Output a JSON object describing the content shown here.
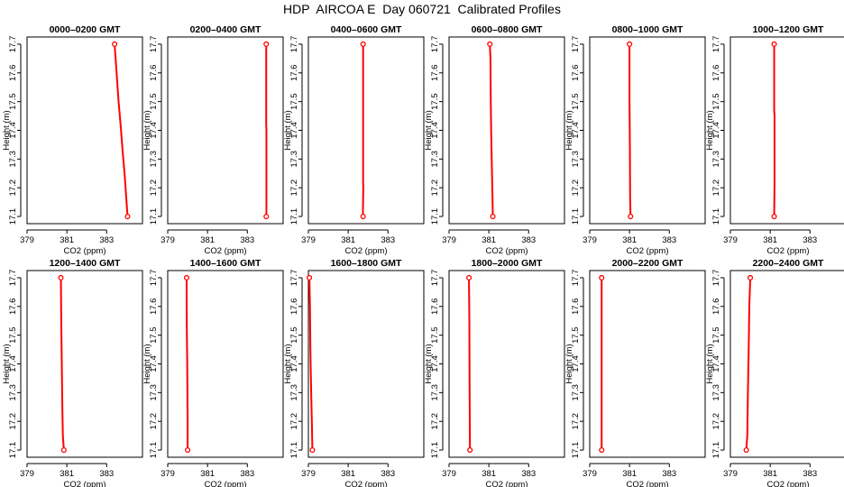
{
  "title": "HDP  AIRCOA E  Day 060721  Calibrated Profiles",
  "colors": {
    "series": "#ff0000",
    "axis": "#000000"
  },
  "chart_data": [
    {
      "type": "line",
      "title": "0000–0200 GMT",
      "xlabel": "CO2 (ppm)",
      "ylabel": "Height (m)",
      "xlim": [
        379,
        384.8
      ],
      "ylim": [
        17.075,
        17.725
      ],
      "xticks": [
        379,
        381,
        383
      ],
      "xtick_labels": [
        "379",
        "381",
        "383"
      ],
      "yticks": [
        17.1,
        17.2,
        17.3,
        17.4,
        17.5,
        17.6,
        17.7
      ],
      "ytick_labels": [
        "17.1",
        "17.2",
        "17.3",
        "17.4",
        "17.5",
        "17.6",
        "17.7"
      ],
      "x": [
        383.4,
        384.05
      ],
      "y": [
        17.7,
        17.1
      ],
      "line_x": [
        383.4,
        383.5,
        383.6,
        383.7,
        383.8,
        383.9,
        384.0,
        384.05
      ],
      "line_y": [
        17.7,
        17.6,
        17.5,
        17.42,
        17.33,
        17.25,
        17.15,
        17.1
      ]
    },
    {
      "type": "line",
      "title": "0200–0400 GMT",
      "xlabel": "CO2 (ppm)",
      "ylabel": "Height (m)",
      "xlim": [
        379,
        384.8
      ],
      "ylim": [
        17.075,
        17.725
      ],
      "xticks": [
        379,
        381,
        383
      ],
      "xtick_labels": [
        "379",
        "381",
        "383"
      ],
      "yticks": [
        17.1,
        17.2,
        17.3,
        17.4,
        17.5,
        17.6,
        17.7
      ],
      "ytick_labels": [
        "17.1",
        "17.2",
        "17.3",
        "17.4",
        "17.5",
        "17.6",
        "17.7"
      ],
      "x": [
        383.95,
        383.95
      ],
      "y": [
        17.7,
        17.1
      ],
      "line_x": [
        383.95,
        383.95,
        383.96,
        383.96,
        383.95
      ],
      "line_y": [
        17.7,
        17.42,
        17.4,
        17.12,
        17.1
      ]
    },
    {
      "type": "line",
      "title": "0400–0600 GMT",
      "xlabel": "CO2 (ppm)",
      "ylabel": "Height (m)",
      "xlim": [
        379,
        384.8
      ],
      "ylim": [
        17.075,
        17.725
      ],
      "xticks": [
        379,
        381,
        383
      ],
      "xtick_labels": [
        "379",
        "381",
        "383"
      ],
      "yticks": [
        17.1,
        17.2,
        17.3,
        17.4,
        17.5,
        17.6,
        17.7
      ],
      "ytick_labels": [
        "17.1",
        "17.2",
        "17.3",
        "17.4",
        "17.5",
        "17.6",
        "17.7"
      ],
      "x": [
        381.75,
        381.75
      ],
      "y": [
        17.7,
        17.1
      ],
      "line_x": [
        381.75,
        381.75,
        381.76,
        381.74,
        381.75
      ],
      "line_y": [
        17.7,
        17.22,
        17.2,
        17.12,
        17.1
      ]
    },
    {
      "type": "line",
      "title": "0600–0800 GMT",
      "xlabel": "CO2 (ppm)",
      "ylabel": "Height (m)",
      "xlim": [
        379,
        384.8
      ],
      "ylim": [
        17.075,
        17.725
      ],
      "xticks": [
        379,
        381,
        383
      ],
      "xtick_labels": [
        "379",
        "381",
        "383"
      ],
      "yticks": [
        17.1,
        17.2,
        17.3,
        17.4,
        17.5,
        17.6,
        17.7
      ],
      "ytick_labels": [
        "17.1",
        "17.2",
        "17.3",
        "17.4",
        "17.5",
        "17.6",
        "17.7"
      ],
      "x": [
        381.05,
        381.2
      ],
      "y": [
        17.7,
        17.1
      ],
      "line_x": [
        381.05,
        381.08,
        381.1,
        381.12,
        381.15,
        381.18,
        381.2
      ],
      "line_y": [
        17.7,
        17.65,
        17.48,
        17.38,
        17.28,
        17.18,
        17.1
      ]
    },
    {
      "type": "line",
      "title": "0800–1000 GMT",
      "xlabel": "CO2 (ppm)",
      "ylabel": "Height (m)",
      "xlim": [
        379,
        384.8
      ],
      "ylim": [
        17.075,
        17.725
      ],
      "xticks": [
        379,
        381,
        383
      ],
      "xtick_labels": [
        "379",
        "381",
        "383"
      ],
      "yticks": [
        17.1,
        17.2,
        17.3,
        17.4,
        17.5,
        17.6,
        17.7
      ],
      "ytick_labels": [
        "17.1",
        "17.2",
        "17.3",
        "17.4",
        "17.5",
        "17.6",
        "17.7"
      ],
      "x": [
        381.0,
        381.05
      ],
      "y": [
        17.7,
        17.1
      ],
      "line_x": [
        381.0,
        381.0,
        381.02,
        381.03,
        381.05
      ],
      "line_y": [
        17.7,
        17.5,
        17.33,
        17.17,
        17.1
      ]
    },
    {
      "type": "line",
      "title": "1000–1200 GMT",
      "xlabel": "CO2 (ppm)",
      "ylabel": "Height (m)",
      "xlim": [
        379,
        384.8
      ],
      "ylim": [
        17.075,
        17.725
      ],
      "xticks": [
        379,
        381,
        383
      ],
      "xtick_labels": [
        "379",
        "381",
        "383"
      ],
      "yticks": [
        17.1,
        17.2,
        17.3,
        17.4,
        17.5,
        17.6,
        17.7
      ],
      "ytick_labels": [
        "17.1",
        "17.2",
        "17.3",
        "17.4",
        "17.5",
        "17.6",
        "17.7"
      ],
      "x": [
        381.2,
        381.2
      ],
      "y": [
        17.7,
        17.1
      ],
      "line_x": [
        381.2,
        381.2,
        381.22,
        381.22,
        381.2
      ],
      "line_y": [
        17.7,
        17.47,
        17.45,
        17.22,
        17.1
      ]
    },
    {
      "type": "line",
      "title": "1200–1400 GMT",
      "xlabel": "CO2 (ppm)",
      "ylabel": "Height (m)",
      "xlim": [
        379,
        384.8
      ],
      "ylim": [
        17.075,
        17.725
      ],
      "xticks": [
        379,
        381,
        383
      ],
      "xtick_labels": [
        "379",
        "381",
        "383"
      ],
      "yticks": [
        17.1,
        17.2,
        17.3,
        17.4,
        17.5,
        17.6,
        17.7
      ],
      "ytick_labels": [
        "17.1",
        "17.2",
        "17.3",
        "17.4",
        "17.5",
        "17.6",
        "17.7"
      ],
      "x": [
        380.7,
        380.85
      ],
      "y": [
        17.7,
        17.1
      ],
      "line_x": [
        380.7,
        380.72,
        380.75,
        380.78,
        380.8,
        380.85
      ],
      "line_y": [
        17.7,
        17.54,
        17.38,
        17.22,
        17.15,
        17.1
      ]
    },
    {
      "type": "line",
      "title": "1400–1600 GMT",
      "xlabel": "CO2 (ppm)",
      "ylabel": "Height (m)",
      "xlim": [
        379,
        384.8
      ],
      "ylim": [
        17.075,
        17.725
      ],
      "xticks": [
        379,
        381,
        383
      ],
      "xtick_labels": [
        "379",
        "381",
        "383"
      ],
      "yticks": [
        17.1,
        17.2,
        17.3,
        17.4,
        17.5,
        17.6,
        17.7
      ],
      "ytick_labels": [
        "17.1",
        "17.2",
        "17.3",
        "17.4",
        "17.5",
        "17.6",
        "17.7"
      ],
      "x": [
        379.95,
        380.0
      ],
      "y": [
        17.7,
        17.1
      ],
      "line_x": [
        379.95,
        379.96,
        379.98,
        380.0,
        380.0
      ],
      "line_y": [
        17.7,
        17.52,
        17.4,
        17.2,
        17.1
      ]
    },
    {
      "type": "line",
      "title": "1600–1800 GMT",
      "xlabel": "CO2 (ppm)",
      "ylabel": "Height (m)",
      "xlim": [
        379,
        384.8
      ],
      "ylim": [
        17.075,
        17.725
      ],
      "xticks": [
        379,
        381,
        383
      ],
      "xtick_labels": [
        "379",
        "381",
        "383"
      ],
      "yticks": [
        17.1,
        17.2,
        17.3,
        17.4,
        17.5,
        17.6,
        17.7
      ],
      "ytick_labels": [
        "17.1",
        "17.2",
        "17.3",
        "17.4",
        "17.5",
        "17.6",
        "17.7"
      ],
      "x": [
        379.05,
        379.2
      ],
      "y": [
        17.7,
        17.1
      ],
      "line_x": [
        379.05,
        379.08,
        379.1,
        379.14,
        379.18,
        379.2
      ],
      "line_y": [
        17.7,
        17.6,
        17.45,
        17.3,
        17.18,
        17.1
      ]
    },
    {
      "type": "line",
      "title": "1800–2000 GMT",
      "xlabel": "CO2 (ppm)",
      "ylabel": "Height (m)",
      "xlim": [
        379,
        384.8
      ],
      "ylim": [
        17.075,
        17.725
      ],
      "xticks": [
        379,
        381,
        383
      ],
      "xtick_labels": [
        "379",
        "381",
        "383"
      ],
      "yticks": [
        17.1,
        17.2,
        17.3,
        17.4,
        17.5,
        17.6,
        17.7
      ],
      "ytick_labels": [
        "17.1",
        "17.2",
        "17.3",
        "17.4",
        "17.5",
        "17.6",
        "17.7"
      ],
      "x": [
        380.0,
        380.05
      ],
      "y": [
        17.7,
        17.1
      ],
      "line_x": [
        380.0,
        380.02,
        380.03,
        380.05
      ],
      "line_y": [
        17.7,
        17.55,
        17.35,
        17.1
      ]
    },
    {
      "type": "line",
      "title": "2000–2200 GMT",
      "xlabel": "CO2 (ppm)",
      "ylabel": "Height (m)",
      "xlim": [
        379,
        384.8
      ],
      "ylim": [
        17.075,
        17.725
      ],
      "xticks": [
        379,
        381,
        383
      ],
      "xtick_labels": [
        "379",
        "381",
        "383"
      ],
      "yticks": [
        17.1,
        17.2,
        17.3,
        17.4,
        17.5,
        17.6,
        17.7
      ],
      "ytick_labels": [
        "17.1",
        "17.2",
        "17.3",
        "17.4",
        "17.5",
        "17.6",
        "17.7"
      ],
      "x": [
        379.6,
        379.6
      ],
      "y": [
        17.7,
        17.1
      ],
      "line_x": [
        379.6,
        379.6
      ],
      "line_y": [
        17.7,
        17.1
      ]
    },
    {
      "type": "line",
      "title": "2200–2400 GMT",
      "xlabel": "CO2 (ppm)",
      "ylabel": "Height (m)",
      "xlim": [
        379,
        384.8
      ],
      "ylim": [
        17.075,
        17.725
      ],
      "xticks": [
        379,
        381,
        383
      ],
      "xtick_labels": [
        "379",
        "381",
        "383"
      ],
      "yticks": [
        17.1,
        17.2,
        17.3,
        17.4,
        17.5,
        17.6,
        17.7
      ],
      "ytick_labels": [
        "17.1",
        "17.2",
        "17.3",
        "17.4",
        "17.5",
        "17.6",
        "17.7"
      ],
      "x": [
        380.0,
        379.8
      ],
      "y": [
        17.7,
        17.1
      ],
      "line_x": [
        380.0,
        379.95,
        379.92,
        379.88,
        379.85,
        379.8
      ],
      "line_y": [
        17.7,
        17.6,
        17.45,
        17.3,
        17.15,
        17.1
      ]
    }
  ]
}
